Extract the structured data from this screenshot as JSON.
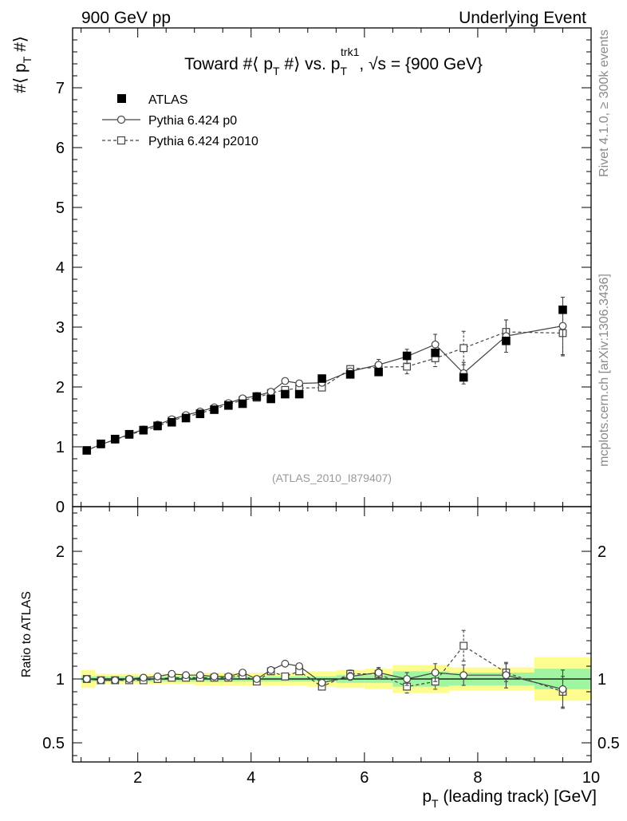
{
  "header": {
    "left_label": "900 GeV pp",
    "right_label": "Underlying Event"
  },
  "side_text": {
    "rivet": "Rivet 4.1.0, ≥ 300k events",
    "mcplots": "mcplots.cern.ch [arXiv:1306.3436]"
  },
  "chart_data": {
    "type": "scatter",
    "title_parts": {
      "main": "Toward #⟨ p",
      "sub1": "T",
      "mid": " #⟩ vs. p",
      "sub2": "T",
      "sup2": "trk1",
      "tail": ", √s = {900 GeV}"
    },
    "ylabel_parts": {
      "main": "#⟨ p",
      "sub": "T",
      "tail": " #⟩"
    },
    "xlabel_parts": {
      "main": "p",
      "sub": "T",
      "tail": " (leading track) [GeV]"
    },
    "ratio_ylabel": "Ratio to ATLAS",
    "watermark": "(ATLAS_2010_I879407)",
    "xlim": [
      0.85,
      10.0
    ],
    "ylim_main": [
      0,
      8
    ],
    "ylim_ratio": [
      0.35,
      2.35
    ],
    "x_ticks": [
      2,
      4,
      6,
      8,
      10
    ],
    "y_ticks_main": [
      0,
      1,
      2,
      3,
      4,
      5,
      6,
      7
    ],
    "y_ticks_ratio": [
      0.5,
      1,
      2
    ],
    "legend": [
      {
        "name": "ATLAS",
        "style": "data"
      },
      {
        "name": "Pythia 6.424 p0",
        "style": "solid-circle"
      },
      {
        "name": "Pythia 6.424 p2010",
        "style": "dashed-square"
      }
    ],
    "bins": [
      [
        1.0,
        1.25
      ],
      [
        1.25,
        1.5
      ],
      [
        1.5,
        1.75
      ],
      [
        1.75,
        2.0
      ],
      [
        2.0,
        2.25
      ],
      [
        2.25,
        2.5
      ],
      [
        2.5,
        2.75
      ],
      [
        2.75,
        3.0
      ],
      [
        3.0,
        3.25
      ],
      [
        3.25,
        3.5
      ],
      [
        3.5,
        3.75
      ],
      [
        3.75,
        4.0
      ],
      [
        4.0,
        4.25
      ],
      [
        4.25,
        4.5
      ],
      [
        4.5,
        4.75
      ],
      [
        4.75,
        5.0
      ],
      [
        5.0,
        5.5
      ],
      [
        5.5,
        6.0
      ],
      [
        6.0,
        6.5
      ],
      [
        6.5,
        7.0
      ],
      [
        7.0,
        7.5
      ],
      [
        7.5,
        8.0
      ],
      [
        8.0,
        9.0
      ],
      [
        9.0,
        10.0
      ]
    ],
    "x": [
      1.1,
      1.35,
      1.6,
      1.85,
      2.1,
      2.35,
      2.6,
      2.85,
      3.1,
      3.35,
      3.6,
      3.85,
      4.1,
      4.35,
      4.6,
      4.85,
      5.25,
      5.75,
      6.25,
      6.75,
      7.25,
      7.75,
      8.5,
      9.5
    ],
    "atlas": {
      "values": [
        0.94,
        1.05,
        1.13,
        1.21,
        1.28,
        1.35,
        1.41,
        1.48,
        1.55,
        1.62,
        1.69,
        1.72,
        1.84,
        1.8,
        1.88,
        1.88,
        2.14,
        2.21,
        2.25,
        2.52,
        2.57,
        2.16,
        2.77,
        3.29
      ],
      "band_green": [
        0.02,
        0.02,
        0.02,
        0.02,
        0.02,
        0.02,
        0.02,
        0.02,
        0.02,
        0.02,
        0.02,
        0.02,
        0.02,
        0.02,
        0.02,
        0.02,
        0.02,
        0.03,
        0.03,
        0.06,
        0.06,
        0.05,
        0.05,
        0.08
      ],
      "band_yellow": [
        0.07,
        0.04,
        0.04,
        0.04,
        0.04,
        0.04,
        0.04,
        0.04,
        0.05,
        0.05,
        0.05,
        0.05,
        0.05,
        0.05,
        0.05,
        0.05,
        0.06,
        0.07,
        0.08,
        0.11,
        0.11,
        0.09,
        0.09,
        0.17
      ]
    },
    "series": [
      {
        "name": "Pythia 6.424 p0",
        "values": [
          0.94,
          1.04,
          1.12,
          1.21,
          1.29,
          1.37,
          1.46,
          1.53,
          1.59,
          1.66,
          1.73,
          1.81,
          1.85,
          1.92,
          2.1,
          2.06,
          2.07,
          2.26,
          2.37,
          2.51,
          2.71,
          2.23,
          2.85,
          3.02
        ],
        "errors": [
          0.01,
          0.01,
          0.01,
          0.01,
          0.01,
          0.01,
          0.01,
          0.01,
          0.02,
          0.02,
          0.02,
          0.02,
          0.02,
          0.03,
          0.03,
          0.04,
          0.04,
          0.06,
          0.09,
          0.12,
          0.17,
          0.18,
          0.27,
          0.48
        ],
        "ratio": [
          1.0,
          0.99,
          0.99,
          1.0,
          1.01,
          1.02,
          1.04,
          1.03,
          1.03,
          1.02,
          1.02,
          1.05,
          1.0,
          1.07,
          1.12,
          1.1,
          0.97,
          1.02,
          1.05,
          1.0,
          1.05,
          1.03,
          1.03,
          0.92
        ],
        "ratio_errors": [
          0.01,
          0.01,
          0.01,
          0.01,
          0.01,
          0.01,
          0.01,
          0.01,
          0.01,
          0.01,
          0.01,
          0.01,
          0.01,
          0.02,
          0.02,
          0.02,
          0.02,
          0.03,
          0.04,
          0.05,
          0.07,
          0.08,
          0.1,
          0.15
        ]
      },
      {
        "name": "Pythia 6.424 p2010",
        "values": [
          0.94,
          1.04,
          1.12,
          1.2,
          1.27,
          1.34,
          1.44,
          1.5,
          1.56,
          1.63,
          1.71,
          1.78,
          1.82,
          1.9,
          1.95,
          1.98,
          1.99,
          2.3,
          2.33,
          2.34,
          2.48,
          2.65,
          2.92,
          2.9
        ],
        "errors": [
          0.01,
          0.01,
          0.01,
          0.01,
          0.01,
          0.01,
          0.01,
          0.01,
          0.02,
          0.02,
          0.02,
          0.02,
          0.02,
          0.03,
          0.03,
          0.04,
          0.04,
          0.06,
          0.09,
          0.12,
          0.14,
          0.28,
          0.2,
          0.38
        ],
        "ratio": [
          1.0,
          0.99,
          0.99,
          0.99,
          0.99,
          1.0,
          1.01,
          1.01,
          1.01,
          1.01,
          1.01,
          1.03,
          0.98,
          1.06,
          1.02,
          1.06,
          0.94,
          1.04,
          1.04,
          0.94,
          0.98,
          1.26,
          1.05,
          0.9
        ],
        "ratio_errors": [
          0.01,
          0.01,
          0.01,
          0.01,
          0.01,
          0.01,
          0.01,
          0.01,
          0.01,
          0.01,
          0.01,
          0.01,
          0.01,
          0.02,
          0.02,
          0.02,
          0.02,
          0.03,
          0.04,
          0.05,
          0.06,
          0.12,
          0.07,
          0.12
        ]
      }
    ]
  },
  "colors": {
    "data": "#000000",
    "mc": "#444444",
    "band_green": "#a0f5a0",
    "band_yellow": "#fdfd8f",
    "watermark": "#999999",
    "side_text": "#8a8a8a"
  }
}
